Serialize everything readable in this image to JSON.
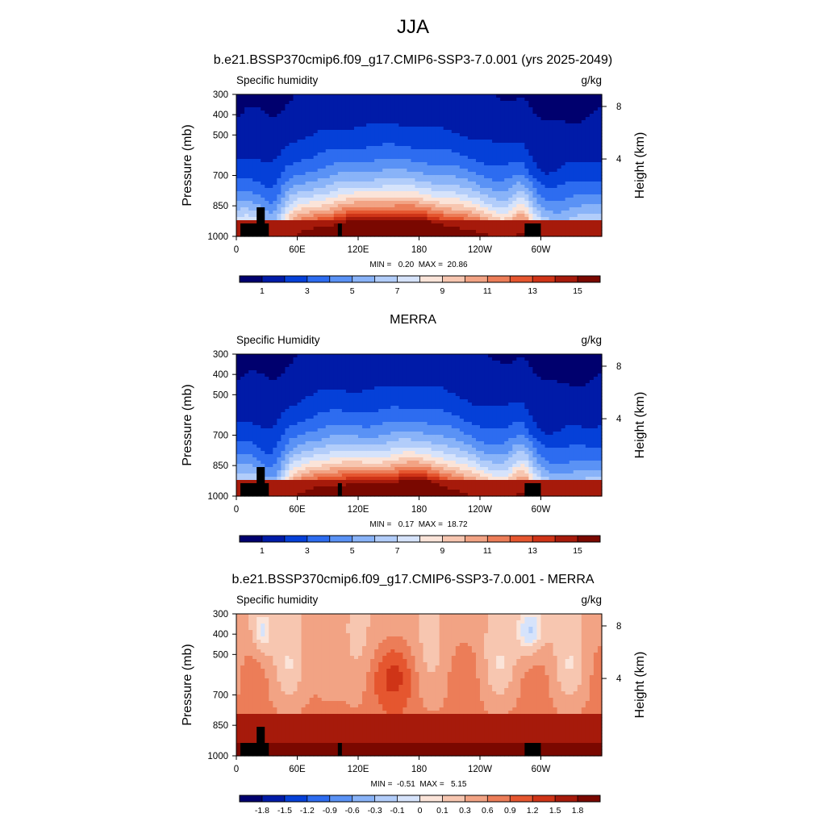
{
  "figure_title": "JJA",
  "colors": {
    "seq_palette": [
      "#00006e",
      "#001ba8",
      "#0540d8",
      "#2d6cf0",
      "#5a92f5",
      "#89b3f8",
      "#b2cdfa",
      "#d6e3fb",
      "#fbe4d9",
      "#f7c6b0",
      "#f2a384",
      "#ec7d58",
      "#e5562f",
      "#cf3417",
      "#a61a0b",
      "#7a0800"
    ],
    "diff_palette": [
      "#00006e",
      "#001ba8",
      "#0540d8",
      "#2d6cf0",
      "#5a92f5",
      "#89b3f8",
      "#b2cdfa",
      "#d6e3fb",
      "#fbe4d9",
      "#f7c6b0",
      "#f2a384",
      "#ec7d58",
      "#e5562f",
      "#cf3417",
      "#a61a0b",
      "#7a0800"
    ],
    "terrain": "#000000"
  },
  "chart_data": [
    {
      "type": "heatmap",
      "title": "b.e21.BSSP370cmip6.f09_g17.CMIP6-SSP3-7.0.001 (yrs 2025-2049)",
      "left_label": "Specific humidity",
      "right_label": "g/kg",
      "ylabel": "Pressure (mb)",
      "y2label": "Height (km)",
      "x_ticks": [
        "0",
        "60E",
        "120E",
        "180",
        "120W",
        "60W"
      ],
      "y_ticks": [
        "300",
        "400",
        "500",
        "700",
        "850",
        "1000"
      ],
      "y2_ticks": [
        "8",
        "4"
      ],
      "stats": "MIN =   0.20  MAX =  20.86",
      "colorbar_labels": [
        "1",
        "3",
        "5",
        "7",
        "9",
        "11",
        "13",
        "15"
      ],
      "min": 0.2,
      "max": 20.86
    },
    {
      "type": "heatmap",
      "title": "MERRA",
      "left_label": "Specific Humidity",
      "right_label": "g/kg",
      "ylabel": "Pressure (mb)",
      "y2label": "Height (km)",
      "x_ticks": [
        "0",
        "60E",
        "120E",
        "180",
        "120W",
        "60W"
      ],
      "y_ticks": [
        "300",
        "400",
        "500",
        "700",
        "850",
        "1000"
      ],
      "y2_ticks": [
        "8",
        "4"
      ],
      "stats": "MIN =   0.17  MAX =  18.72",
      "colorbar_labels": [
        "1",
        "3",
        "5",
        "7",
        "9",
        "11",
        "13",
        "15"
      ],
      "min": 0.17,
      "max": 18.72
    },
    {
      "type": "heatmap",
      "title": "b.e21.BSSP370cmip6.f09_g17.CMIP6-SSP3-7.0.001 - MERRA",
      "left_label": "Specific humidity",
      "right_label": "g/kg",
      "ylabel": "Pressure (mb)",
      "y2label": "Height (km)",
      "x_ticks": [
        "0",
        "60E",
        "120E",
        "180",
        "120W",
        "60W"
      ],
      "y_ticks": [
        "300",
        "400",
        "500",
        "700",
        "850",
        "1000"
      ],
      "y2_ticks": [
        "8",
        "4"
      ],
      "stats": "MIN =  -0.51  MAX =   5.15",
      "colorbar_labels": [
        "-1.8",
        "-1.5",
        "-1.2",
        "-0.9",
        "-0.6",
        "-0.3",
        "-0.1",
        "0",
        "0.1",
        "0.3",
        "0.6",
        "0.9",
        "1.2",
        "1.5",
        "1.8"
      ],
      "min": -0.51,
      "max": 5.15
    }
  ]
}
